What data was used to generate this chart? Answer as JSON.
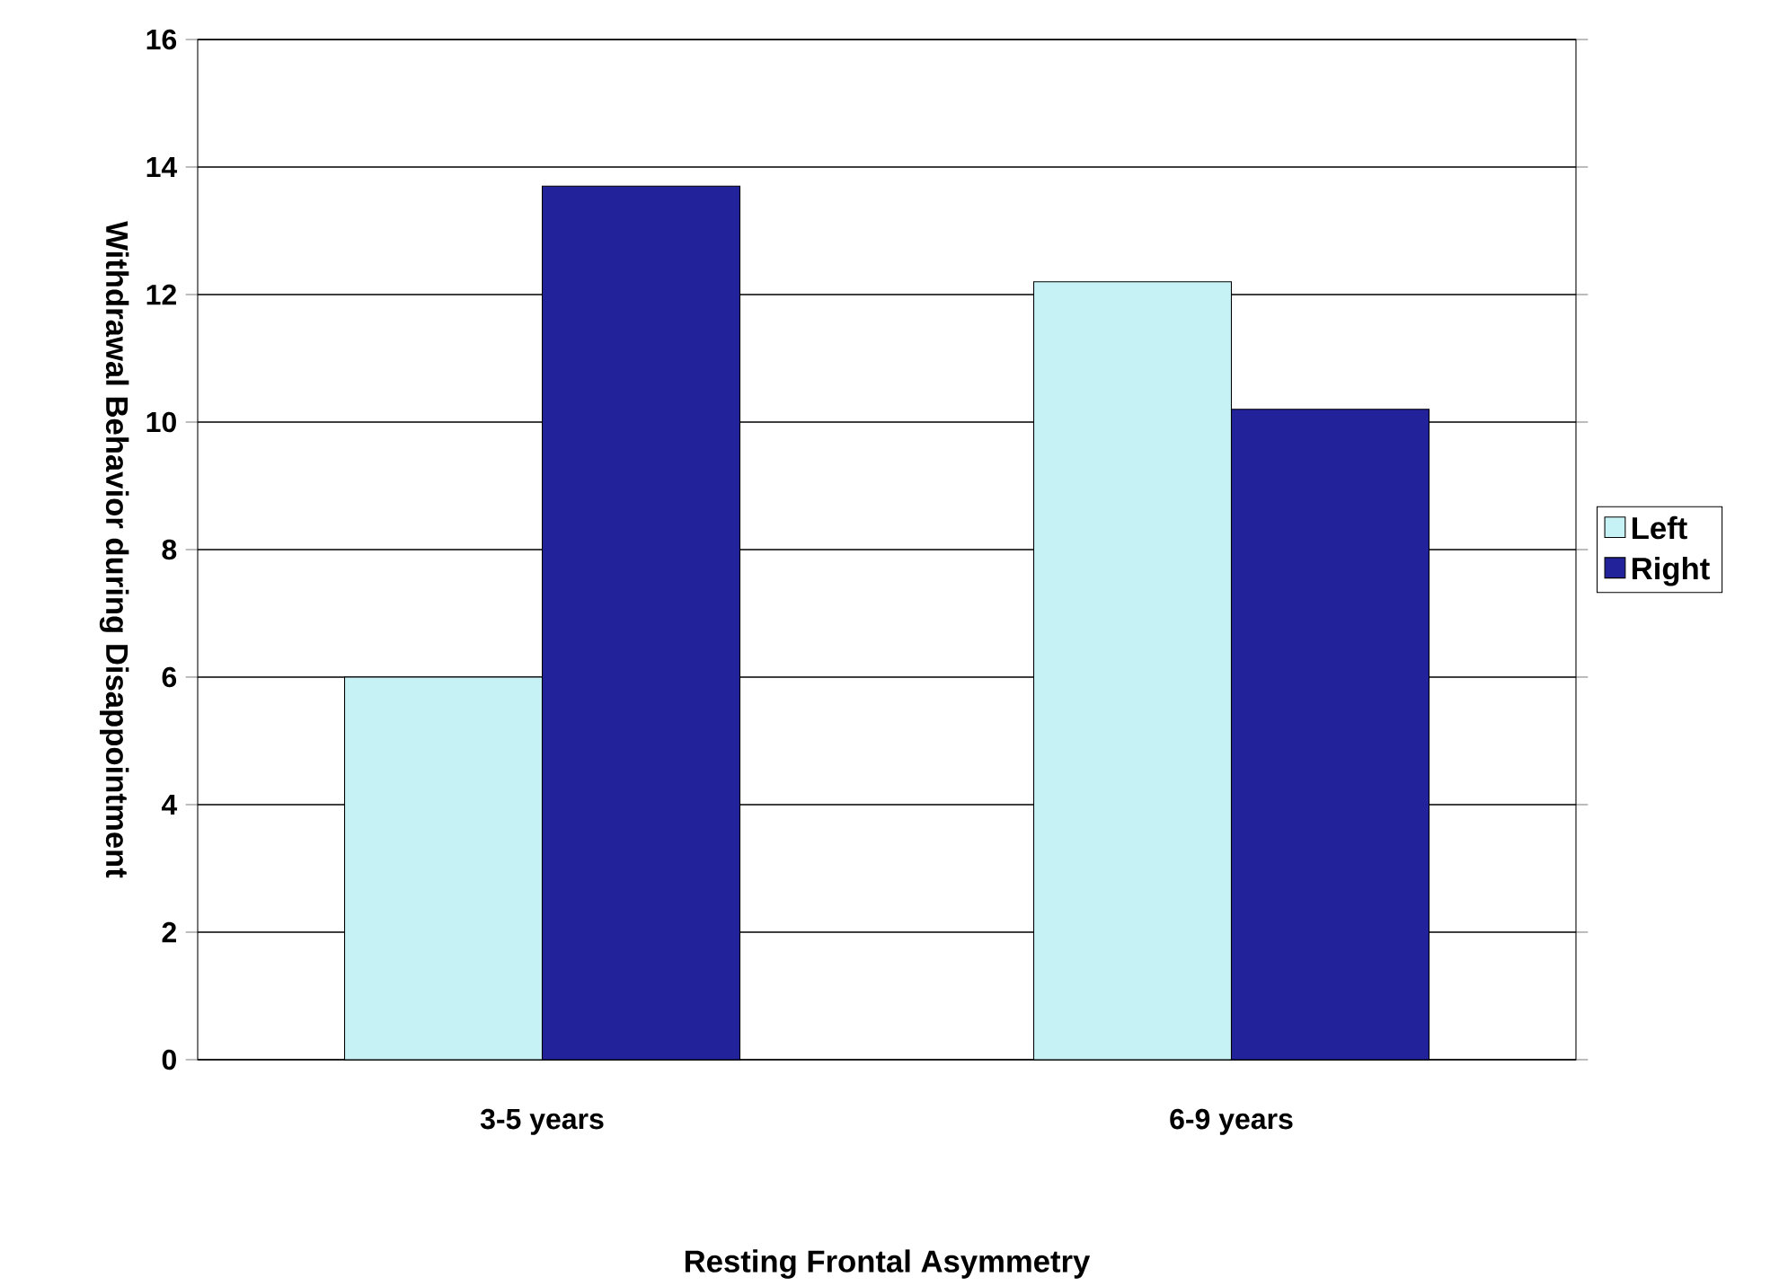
{
  "chart_data": {
    "type": "bar",
    "xlabel": "Resting Frontal Asymmetry",
    "ylabel": "Withdrawal Behavior during Disappointment",
    "categories": [
      "3-5 years",
      "6-9 years"
    ],
    "series": [
      {
        "name": "Left",
        "color": "#c6f1f5",
        "values": [
          6.0,
          12.2
        ]
      },
      {
        "name": "Right",
        "color": "#22229a",
        "values": [
          13.7,
          10.2
        ]
      }
    ],
    "ylim": [
      0,
      16
    ],
    "yticks": [
      0,
      2,
      4,
      6,
      8,
      10,
      12,
      14,
      16
    ],
    "grid": "y",
    "legend": "right"
  }
}
